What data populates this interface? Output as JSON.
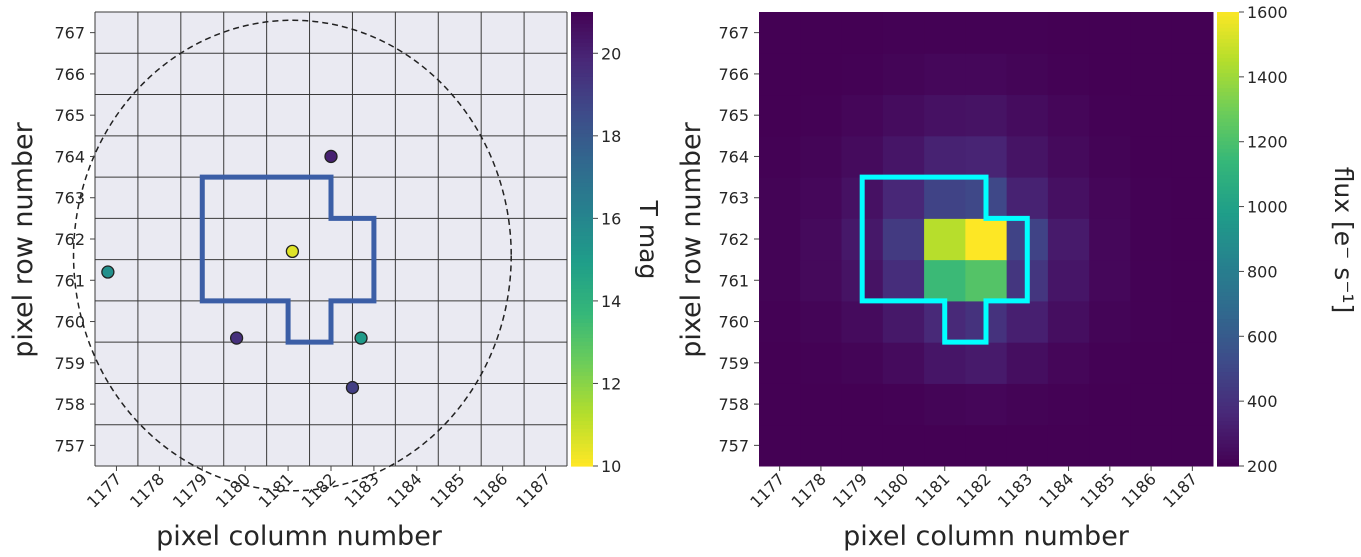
{
  "chart_data": [
    {
      "type": "scatter",
      "xlabel": "pixel column number",
      "ylabel": "pixel row number",
      "xlim": [
        1176.5,
        1187.5
      ],
      "ylim": [
        756.5,
        767.5
      ],
      "xticks": [
        "1177",
        "1178",
        "1179",
        "1180",
        "1181",
        "1182",
        "1183",
        "1184",
        "1185",
        "1186",
        "1187"
      ],
      "yticks": [
        "757",
        "758",
        "759",
        "760",
        "761",
        "762",
        "763",
        "764",
        "765",
        "766",
        "767"
      ],
      "grid": true,
      "background": "#eaeaf2",
      "colorbar": {
        "label": "T mag",
        "range": [
          10,
          21
        ],
        "ticks": [
          "10",
          "12",
          "14",
          "16",
          "18",
          "20"
        ],
        "colormap": "viridis_r"
      },
      "points": [
        {
          "x": 1181.1,
          "y": 761.7,
          "tmag": 10.5
        },
        {
          "x": 1176.8,
          "y": 761.2,
          "tmag": 15.5
        },
        {
          "x": 1182.0,
          "y": 764.0,
          "tmag": 20.0
        },
        {
          "x": 1179.8,
          "y": 759.6,
          "tmag": 19.5
        },
        {
          "x": 1182.7,
          "y": 759.6,
          "tmag": 15.0
        },
        {
          "x": 1182.5,
          "y": 758.4,
          "tmag": 19.0
        }
      ],
      "aperture": {
        "color": "#3b5ea6",
        "vertices": [
          [
            1179,
            763.5
          ],
          [
            1182,
            763.5
          ],
          [
            1182,
            762.5
          ],
          [
            1183,
            762.5
          ],
          [
            1183,
            760.5
          ],
          [
            1182,
            760.5
          ],
          [
            1182,
            759.5
          ],
          [
            1181,
            759.5
          ],
          [
            1181,
            760.5
          ],
          [
            1179,
            760.5
          ]
        ]
      },
      "circle": {
        "center": [
          1181.1,
          761.6
        ],
        "radius_x": 5.1,
        "radius_y": 5.7,
        "style": "dashed"
      }
    },
    {
      "type": "heatmap",
      "xlabel": "pixel column number",
      "ylabel": "pixel row number",
      "xlim": [
        1176.5,
        1187.5
      ],
      "ylim": [
        756.5,
        767.5
      ],
      "xticks": [
        "1177",
        "1178",
        "1179",
        "1180",
        "1181",
        "1182",
        "1183",
        "1184",
        "1185",
        "1186",
        "1187"
      ],
      "yticks": [
        "757",
        "758",
        "759",
        "760",
        "761",
        "762",
        "763",
        "764",
        "765",
        "766",
        "767"
      ],
      "colorbar": {
        "label": "flux [e$^-$ s$^{-1}$]",
        "range": [
          200,
          1600
        ],
        "ticks": [
          "200",
          "400",
          "600",
          "800",
          "1000",
          "1200",
          "1400",
          "1600"
        ],
        "colormap": "viridis"
      },
      "row_labels_bottom_to_top": [
        757,
        758,
        759,
        760,
        761,
        762,
        763,
        764,
        765,
        766,
        767
      ],
      "col_labels": [
        1177,
        1178,
        1179,
        1180,
        1181,
        1182,
        1183,
        1184,
        1185,
        1186,
        1187
      ],
      "values_bottom_to_top": [
        [
          200,
          200,
          200,
          200,
          200,
          200,
          200,
          200,
          200,
          200,
          200
        ],
        [
          200,
          200,
          200,
          205,
          215,
          220,
          210,
          205,
          200,
          200,
          200
        ],
        [
          200,
          205,
          215,
          240,
          280,
          300,
          250,
          220,
          205,
          200,
          200
        ],
        [
          205,
          215,
          240,
          290,
          360,
          400,
          320,
          250,
          215,
          205,
          200
        ],
        [
          210,
          230,
          270,
          380,
          1150,
          1220,
          420,
          280,
          225,
          205,
          200
        ],
        [
          210,
          235,
          290,
          440,
          1450,
          1600,
          480,
          300,
          225,
          205,
          200
        ],
        [
          210,
          225,
          265,
          350,
          480,
          500,
          330,
          260,
          220,
          205,
          200
        ],
        [
          205,
          215,
          240,
          280,
          330,
          340,
          275,
          235,
          210,
          200,
          200
        ],
        [
          200,
          205,
          220,
          245,
          265,
          270,
          245,
          220,
          205,
          200,
          200
        ],
        [
          200,
          200,
          205,
          215,
          225,
          225,
          215,
          205,
          200,
          200,
          200
        ],
        [
          200,
          200,
          200,
          205,
          205,
          205,
          205,
          200,
          200,
          200,
          200
        ]
      ],
      "aperture": {
        "color": "#00ffff",
        "vertices": [
          [
            1179,
            763.5
          ],
          [
            1182,
            763.5
          ],
          [
            1182,
            762.5
          ],
          [
            1183,
            762.5
          ],
          [
            1183,
            760.5
          ],
          [
            1182,
            760.5
          ],
          [
            1182,
            759.5
          ],
          [
            1181,
            759.5
          ],
          [
            1181,
            760.5
          ],
          [
            1179,
            760.5
          ]
        ]
      }
    }
  ],
  "labels": {
    "left_xlabel": "pixel column number",
    "left_ylabel": "pixel row number",
    "left_cbar_label": "T mag",
    "right_xlabel": "pixel column number",
    "right_ylabel": "pixel row number",
    "right_cbar_label": "flux [e⁻ s⁻¹]"
  }
}
